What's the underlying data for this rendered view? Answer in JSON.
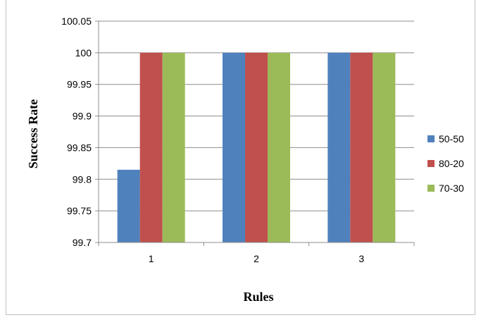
{
  "chart_data": {
    "type": "bar",
    "title": "",
    "xlabel": "Rules",
    "ylabel": "Success Rate",
    "categories": [
      "1",
      "2",
      "3"
    ],
    "series": [
      {
        "name": "50-50",
        "values": [
          99.815,
          100,
          100
        ],
        "color": "#4f81bd"
      },
      {
        "name": "80-20",
        "values": [
          100,
          100,
          100
        ],
        "color": "#c0504d"
      },
      {
        "name": "70-30",
        "values": [
          100,
          100,
          100
        ],
        "color": "#9bbb59"
      }
    ],
    "ylim": [
      99.7,
      100.05
    ],
    "yticks": [
      "100.05",
      "100",
      "99.95",
      "99.9",
      "99.85",
      "99.8",
      "99.75",
      "99.7"
    ],
    "grid": true,
    "legend": "right"
  }
}
